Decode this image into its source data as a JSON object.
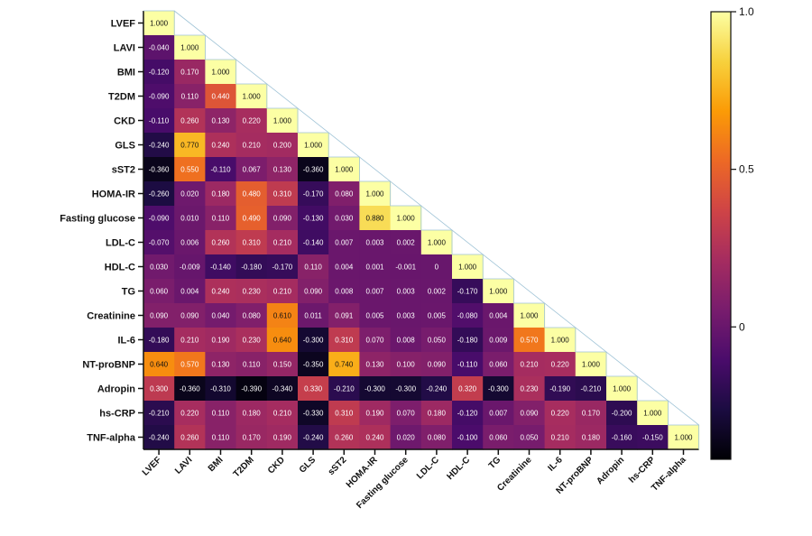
{
  "chart_data": {
    "type": "heatmap",
    "title": "",
    "variables": [
      "LVEF",
      "LAVI",
      "BMI",
      "T2DM",
      "CKD",
      "GLS",
      "sST2",
      "HOMA-IR",
      "Fasting glucose",
      "LDL-C",
      "HDL-C",
      "TG",
      "Creatinine",
      "IL-6",
      "NT-proBNP",
      "Adropin",
      "hs-CRP",
      "TNF-alpha"
    ],
    "values": [
      [
        "1.000"
      ],
      [
        "-0.040",
        "1.000"
      ],
      [
        "-0.120",
        "0.170",
        "1.000"
      ],
      [
        "-0.090",
        "0.110",
        "0.440",
        "1.000"
      ],
      [
        "-0.110",
        "0.260",
        "0.130",
        "0.220",
        "1.000"
      ],
      [
        "-0.240",
        "0.770",
        "0.240",
        "0.210",
        "0.200",
        "1.000"
      ],
      [
        "-0.360",
        "0.550",
        "-0.110",
        "0.067",
        "0.130",
        "-0.360",
        "1.000"
      ],
      [
        "-0.260",
        "0.020",
        "0.180",
        "0.480",
        "0.310",
        "-0.170",
        "0.080",
        "1.000"
      ],
      [
        "-0.090",
        "0.010",
        "0.110",
        "0.490",
        "0.090",
        "-0.130",
        "0.030",
        "0.880",
        "1.000"
      ],
      [
        "-0.070",
        "0.006",
        "0.260",
        "0.310",
        "0.210",
        "-0.140",
        "0.007",
        "0.003",
        "0.002",
        "1.000"
      ],
      [
        "0.030",
        "-0.009",
        "-0.140",
        "-0.180",
        "-0.170",
        "0.110",
        "0.004",
        "0.001",
        "-0.001",
        "0",
        "1.000"
      ],
      [
        "0.060",
        "0.004",
        "0.240",
        "0.230",
        "0.210",
        "0.090",
        "0.008",
        "0.007",
        "0.003",
        "0.002",
        "-0.170",
        "1.000"
      ],
      [
        "0.090",
        "0.090",
        "0.040",
        "0.080",
        "0.610",
        "0.011",
        "0.091",
        "0.005",
        "0.003",
        "0.005",
        "-0.080",
        "0.004",
        "1.000"
      ],
      [
        "-0.180",
        "0.210",
        "0.190",
        "0.230",
        "0.640",
        "-0.300",
        "0.310",
        "0.070",
        "0.008",
        "0.050",
        "-0.180",
        "0.009",
        "0.570",
        "1.000"
      ],
      [
        "0.640",
        "0.570",
        "0.130",
        "0.110",
        "0.150",
        "-0.350",
        "0.740",
        "0.130",
        "0.100",
        "0.090",
        "-0.110",
        "0.060",
        "0.210",
        "0.220",
        "1.000"
      ],
      [
        "0.300",
        "-0.360",
        "-0.310",
        "-0.390",
        "-0.340",
        "0.330",
        "-0.210",
        "-0.300",
        "-0.300",
        "-0.240",
        "0.320",
        "-0.300",
        "0.230",
        "-0.190",
        "-0.210",
        "1.000"
      ],
      [
        "-0.210",
        "0.220",
        "0.110",
        "0.180",
        "0.210",
        "-0.330",
        "0.310",
        "0.190",
        "0.070",
        "0.180",
        "-0.120",
        "0.007",
        "0.090",
        "0.220",
        "0.170",
        "-0.200",
        "1.000"
      ],
      [
        "-0.240",
        "0.260",
        "0.110",
        "0.170",
        "0.190",
        "-0.240",
        "0.260",
        "0.240",
        "0.020",
        "0.080",
        "-0.100",
        "0.060",
        "0.050",
        "0.210",
        "0.180",
        "-0.160",
        "-0.150",
        "1.000"
      ]
    ],
    "colorbar": {
      "min": -0.42,
      "max": 1.0,
      "ticks": [
        {
          "value": 1.0,
          "label": "1.0"
        },
        {
          "value": 0.5,
          "label": "0.5"
        },
        {
          "value": 0.0,
          "label": "0"
        }
      ]
    },
    "colormap": [
      "#000004",
      "#1b0c41",
      "#4a0c6b",
      "#781c6d",
      "#a52c60",
      "#cf4446",
      "#ed6925",
      "#fb9b06",
      "#f7d13d",
      "#fcffa4"
    ]
  }
}
